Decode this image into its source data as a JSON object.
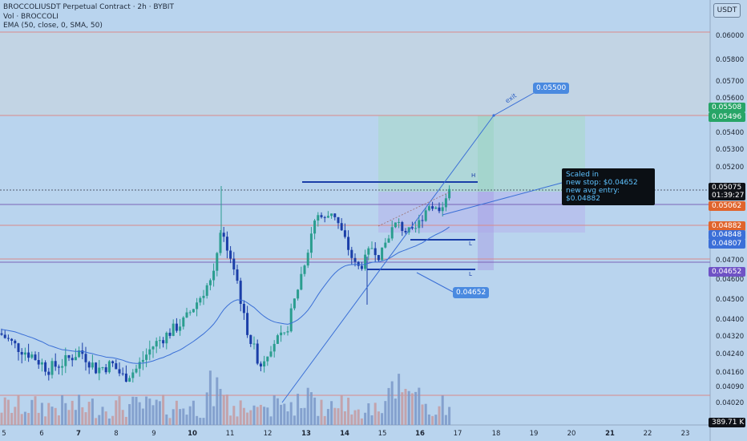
{
  "header": {
    "title": "BROCCOLIUSDT Perpetual Contract · 2h · BYBIT",
    "vol": "Vol · BROCCOLI",
    "ema": "EMA (50, close, 0, SMA, 50)"
  },
  "currency": "USDT",
  "y_ticks": [
    "0.06000",
    "0.05800",
    "0.05700",
    "0.05600",
    "0.05400",
    "0.05300",
    "0.05200",
    "0.04700",
    "0.04600",
    "0.04500",
    "0.04400",
    "0.04320",
    "0.04240",
    "0.04160",
    "0.04090",
    "0.04020"
  ],
  "x_ticks": [
    "5",
    "6",
    "7",
    "8",
    "9",
    "10",
    "11",
    "12",
    "13",
    "14",
    "15",
    "16",
    "17",
    "18",
    "19",
    "20",
    "21",
    "22",
    "23"
  ],
  "bold_x_ticks": [
    "7",
    "10",
    "13",
    "14",
    "16",
    "21"
  ],
  "price_tags": {
    "target_top": "0.05508",
    "target_bottom": "0.05496",
    "current_price": "0.05075",
    "countdown": "01:39:27",
    "line_a": "0.05062",
    "avg_entry": "0.04882",
    "tag_b": "0.04848",
    "tag_c": "0.04807",
    "stop": "0.04652",
    "volume": "389.71 K"
  },
  "annotations": {
    "exit_label": "0.05500",
    "exit_text": "exit",
    "stop_label": "0.04652",
    "h_mark": "H",
    "l_mark_1": "L",
    "l_mark_2": "L",
    "note_line1": "Scaled in",
    "note_line2": "new stop: $0.04652",
    "note_line3": "new avg entry: $0.04882"
  },
  "colors": {
    "background": "#b9d4ee",
    "up": "#2a9d8f",
    "down": "#1a3ea8",
    "vol_up": "#7a98c8",
    "vol_down": "#c49aa0",
    "ema": "#3a6fd6",
    "hline_red": "#d98a8a",
    "hline_purple": "#7a64b8",
    "target_zone": "#a7d8c8",
    "stop_zone": "#b7b2ec",
    "tag_green": "#27a567",
    "tag_orange": "#e0642c",
    "tag_blue": "#3b6fd8",
    "tag_purple": "#6f52c5",
    "tag_dark": "#0f1218"
  },
  "chart_data": {
    "type": "candlestick",
    "symbol": "BROCCOLIUSDT Perpetual Contract",
    "interval": "2h",
    "exchange": "BYBIT",
    "ylim": [
      0.0398,
      0.0612
    ],
    "horizontal_levels": [
      0.06,
      0.05496,
      0.05062,
      0.04882,
      0.047,
      0.04652,
      0.0409
    ],
    "resistance_H": 0.05075,
    "support_L1": 0.04807,
    "support_L2": 0.04652,
    "target": 0.055,
    "stop": 0.04652,
    "avg_entry": 0.04882,
    "current_price": 0.05075,
    "last_volume": "389.71 K"
  }
}
